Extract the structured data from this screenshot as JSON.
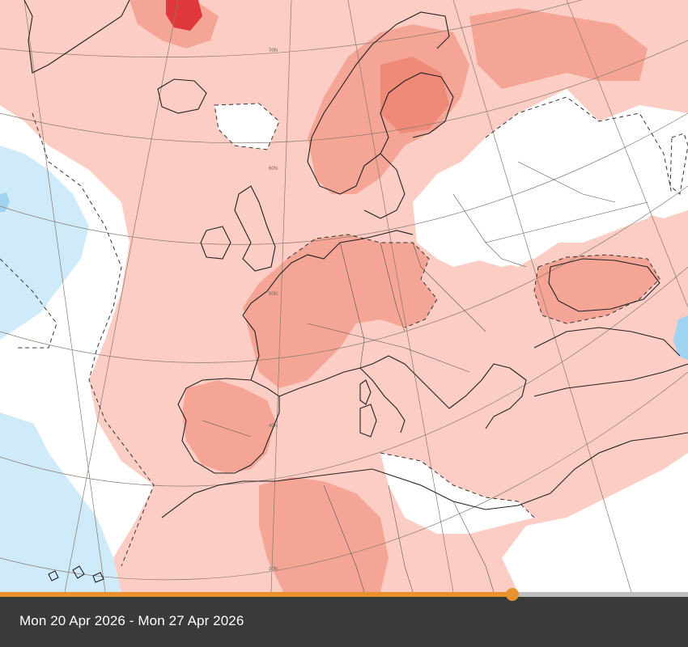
{
  "map": {
    "type": "anomaly map",
    "region": "Europe",
    "colors": {
      "background": "#ffffff",
      "warm_light": "#fbcdc4",
      "warm_medium": "#f4a596",
      "warm_strong": "#ee8a77",
      "warm_extreme": "#e0383a",
      "cool_light": "#cfeaf9",
      "cool_medium": "#9fd3f2",
      "coastline": "#222222",
      "border": "#555555",
      "graticule": "#8a7a70"
    },
    "graticule_labels": [
      "70N",
      "60N",
      "50N",
      "40N",
      "30N"
    ]
  },
  "timeline": {
    "date_range": "Mon 20 Apr 2026 - Mon 27 Apr 2026",
    "progress": 0.745,
    "colors": {
      "accent": "#e8912d",
      "track": "#bdbdbd",
      "bar": "#3a3a3a"
    }
  }
}
